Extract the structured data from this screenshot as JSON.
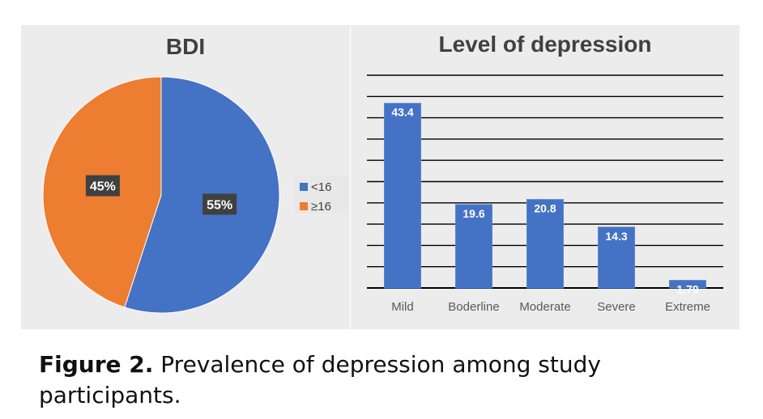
{
  "caption": {
    "label": "Figure 2.",
    "text": "Prevalence of depression among study participants."
  },
  "chart_data": [
    {
      "type": "pie",
      "title": "BDI",
      "slices": [
        {
          "label": "<16",
          "value": 55,
          "data_label": "55%",
          "color": "#4472c4"
        },
        {
          "label": "≥16",
          "value": 45,
          "data_label": "45%",
          "color": "#ed7d31"
        }
      ],
      "legend_placement": "right"
    },
    {
      "type": "bar",
      "title": "Level of depression",
      "categories": [
        "Mild",
        "Boderline",
        "Moderate",
        "Severe",
        "Extreme"
      ],
      "values": [
        43.4,
        19.6,
        20.8,
        14.3,
        1.79
      ],
      "data_labels": [
        "43.4",
        "19.6",
        "20.8",
        "14.3",
        "1.79"
      ],
      "ylim": [
        0,
        50
      ],
      "grid": true,
      "color": "#4472c4"
    }
  ]
}
